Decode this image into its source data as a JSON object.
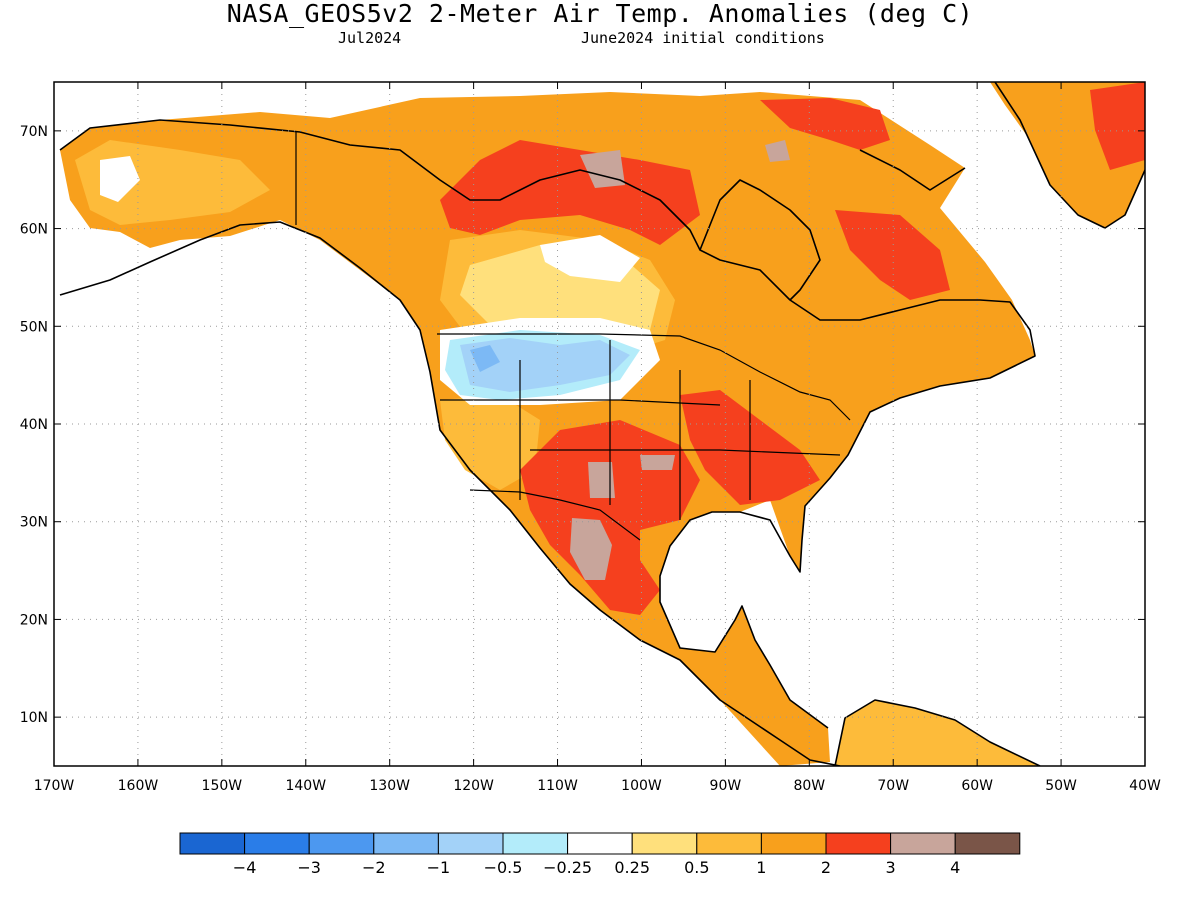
{
  "title": "NASA_GEOS5v2 2-Meter Air Temp. Anomalies (deg C)",
  "subtitle_left": "Jul2024",
  "subtitle_right": "June2024 initial conditions",
  "map": {
    "lon_range": [
      -170,
      -40
    ],
    "lat_range": [
      5,
      75
    ],
    "lat_ticks": [
      {
        "value": 70,
        "label": "70N"
      },
      {
        "value": 60,
        "label": "60N"
      },
      {
        "value": 50,
        "label": "50N"
      },
      {
        "value": 40,
        "label": "40N"
      },
      {
        "value": 30,
        "label": "30N"
      },
      {
        "value": 20,
        "label": "20N"
      },
      {
        "value": 10,
        "label": "10N"
      }
    ],
    "lon_ticks": [
      {
        "value": -170,
        "label": "170W"
      },
      {
        "value": -160,
        "label": "160W"
      },
      {
        "value": -150,
        "label": "150W"
      },
      {
        "value": -140,
        "label": "140W"
      },
      {
        "value": -130,
        "label": "130W"
      },
      {
        "value": -120,
        "label": "120W"
      },
      {
        "value": -110,
        "label": "110W"
      },
      {
        "value": -100,
        "label": "100W"
      },
      {
        "value": -90,
        "label": "90W"
      },
      {
        "value": -80,
        "label": "80W"
      },
      {
        "value": -70,
        "label": "70W"
      },
      {
        "value": -60,
        "label": "60W"
      },
      {
        "value": -50,
        "label": "50W"
      },
      {
        "value": -40,
        "label": "40W"
      }
    ],
    "grid": "dotted"
  },
  "colorbar": {
    "colors": [
      "#1a66d2",
      "#2a7de8",
      "#4c98f0",
      "#7cb9f5",
      "#a3d2f8",
      "#b3ecfa",
      "#ffffff",
      "#ffe07c",
      "#fdbb3a",
      "#f8a01c",
      "#f5401e",
      "#c8a59b",
      "#7a5548"
    ],
    "labels": [
      "−4",
      "−3",
      "−2",
      "−1",
      "−0.5",
      "−0.25",
      "0.25",
      "0.5",
      "1",
      "2",
      "3",
      "4"
    ]
  },
  "palette": {
    "gt3": "#c8a59b",
    "2to3": "#f5401e",
    "1to2": "#f8a01c",
    "0.5to1": "#fdbb3a",
    "0.25to0.5": "#ffe07c",
    "neutral": "#ffffff",
    "m0.5": "#b3ecfa",
    "m1": "#a3d2f8",
    "m2": "#7cb9f5"
  }
}
